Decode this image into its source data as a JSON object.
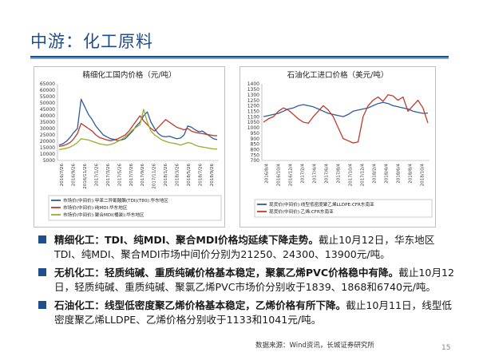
{
  "slide": {
    "title": "中游：化工原料",
    "source": "数据来源：Wind资讯，长城证券研究所",
    "page_number": "15",
    "accent_color": "#1f4e8c",
    "rule_light_color": "#7fa6d6"
  },
  "bullets": [
    {
      "bold": "精细化工：TDI、纯MDI、聚合MDI价格均延续下降走势。",
      "text": "截止10月12日，华东地区TDI、纯MDI、聚合MDI市场中间价分别为21250、24300、13900元/吨。"
    },
    {
      "bold": "无机化工：轻质纯碱、重质纯碱价格基本稳定，聚氯乙烯PVC价格稳中有降。",
      "text": "截止10月12日，轻质纯碱、重质纯碱、聚氯乙烯PVC市场价分别收于1839、1868和6740元/吨。"
    },
    {
      "bold": "石油化工：线型低密度聚乙烯价格基本稳定，乙烯价格有所下降。",
      "text": "截止10月11日，线型低密度聚乙烯LLDPE、乙烯价格分别收于1133和1041元/吨。"
    }
  ],
  "chart_data": [
    {
      "type": "line",
      "title": "精细化工国内价格（元/吨）",
      "x_tick_labels": [
        "2016/7/26",
        "2016/9/26",
        "2016/11/26",
        "2017/1/26",
        "2017/3/26",
        "2017/5/26",
        "2017/7/26",
        "2017/9/26",
        "2017/11/26",
        "2018/1/26",
        "2018/3/26",
        "2018/5/26",
        "2018/7/26",
        "2018/9/26"
      ],
      "y_ticks": [
        5000,
        10000,
        15000,
        20000,
        25000,
        30000,
        35000,
        40000,
        45000,
        50000,
        55000,
        60000,
        65000
      ],
      "ylim": [
        5000,
        65000
      ],
      "grid": false,
      "legend_position": "bottom",
      "series": [
        {
          "name": "市场价(中间价):甲苯二异氰酸酯(TDI)(T80):华东地区",
          "color": "#2e5c9a",
          "values": [
            17000,
            18000,
            20000,
            23000,
            27000,
            30000,
            53000,
            47000,
            41000,
            37000,
            32000,
            28500,
            25000,
            23500,
            22000,
            21500,
            20500,
            21000,
            22000,
            25000,
            28000,
            32000,
            35000,
            40000,
            43000,
            35000,
            30000,
            26000,
            24000,
            23500,
            24000,
            23000,
            22000,
            22500,
            25000,
            32000,
            31000,
            29000,
            27500,
            28000,
            26000,
            24000,
            22000,
            21250
          ]
        },
        {
          "name": "市场价(中间价):纯MDI:华东地区",
          "color": "#c0392b",
          "values": [
            16000,
            16500,
            17500,
            19000,
            22000,
            26000,
            34000,
            32000,
            30000,
            28000,
            25000,
            23000,
            22000,
            21000,
            20500,
            21000,
            22000,
            23500,
            25000,
            28000,
            32000,
            36000,
            40000,
            36000,
            33000,
            30000,
            28000,
            31000,
            34000,
            37000,
            35000,
            33000,
            31000,
            30000,
            29000,
            30000,
            28000,
            27000,
            26500,
            26000,
            25500,
            25000,
            24500,
            24300
          ]
        },
        {
          "name": "市场价(中间价):聚合MDI(桶装):华东地区",
          "color": "#9aab2a",
          "values": [
            13500,
            14000,
            14500,
            15500,
            17000,
            19000,
            22000,
            21500,
            21000,
            20000,
            19000,
            18000,
            17500,
            17000,
            17500,
            18500,
            20000,
            21500,
            23500,
            26000,
            29000,
            31000,
            33000,
            45000,
            35000,
            28000,
            25000,
            23000,
            21000,
            20000,
            19000,
            18500,
            18000,
            17000,
            18000,
            19000,
            18500,
            17000,
            16000,
            15500,
            15000,
            14500,
            14000,
            13900
          ]
        }
      ]
    },
    {
      "type": "line",
      "title": "石油化工进口价格（美元/吨）",
      "x_tick_labels": [
        "2016/8/4",
        "2016/10/4",
        "2016/12/4",
        "2017/2/4",
        "2017/4/4",
        "2017/6/4",
        "2017/8/4",
        "2017/10/4",
        "2017/12/4",
        "2018/2/4",
        "2018/4/4",
        "2018/6/4",
        "2018/8/4",
        "2018/10/4"
      ],
      "y_ticks": [
        700,
        750,
        800,
        850,
        900,
        950,
        1000,
        1050,
        1100,
        1150,
        1200,
        1250,
        1300,
        1350,
        1400
      ],
      "ylim": [
        700,
        1400
      ],
      "grid": false,
      "legend_position": "bottom",
      "series": [
        {
          "name": "现货价(中间价):线型低密度聚乙烯LLDPE:CFR东南亚",
          "color": "#2e5c9a",
          "values": [
            1100,
            1110,
            1120,
            1130,
            1150,
            1170,
            1180,
            1200,
            1210,
            1200,
            1190,
            1170,
            1150,
            1130,
            1120,
            1110,
            1100,
            1120,
            1150,
            1160,
            1170,
            1180,
            1200,
            1220,
            1230,
            1220,
            1200,
            1190,
            1180,
            1170,
            1150,
            1140,
            1130,
            1133
          ]
        },
        {
          "name": "现货价(中间价):乙烯:CFR东南亚",
          "color": "#c0392b",
          "values": [
            1050,
            1080,
            1100,
            1150,
            1180,
            1160,
            1120,
            1080,
            1050,
            1040,
            1100,
            1150,
            1200,
            1160,
            1100,
            1000,
            900,
            880,
            860,
            870,
            1100,
            1200,
            1250,
            1280,
            1240,
            1300,
            1290,
            1250,
            1280,
            1150,
            1200,
            1250,
            1180,
            1041
          ]
        }
      ]
    }
  ]
}
